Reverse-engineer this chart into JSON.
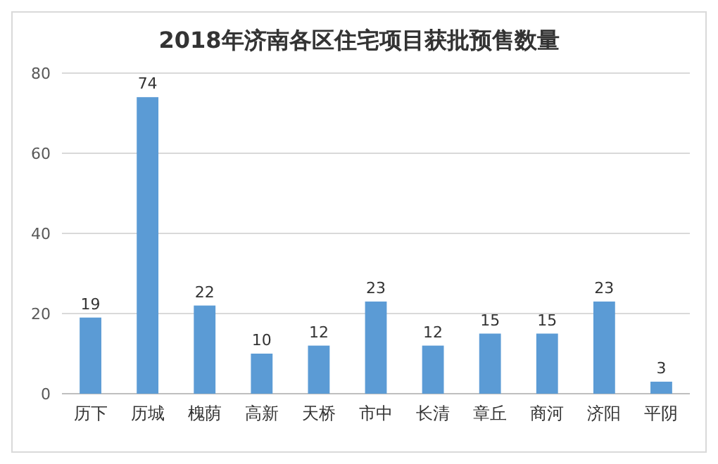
{
  "chart_data": {
    "type": "bar",
    "title": "2018年济南各区住宅项目获批预售数量",
    "categories": [
      "历下",
      "历城",
      "槐荫",
      "高新",
      "天桥",
      "市中",
      "长清",
      "章丘",
      "商河",
      "济阳",
      "平阴"
    ],
    "values": [
      19,
      74,
      22,
      10,
      12,
      23,
      12,
      15,
      15,
      23,
      3
    ],
    "color": "#5b9bd5",
    "ylim": [
      0,
      80
    ],
    "yticks": [
      0,
      20,
      40,
      60,
      80
    ],
    "grid": "y",
    "data_labels": true
  }
}
